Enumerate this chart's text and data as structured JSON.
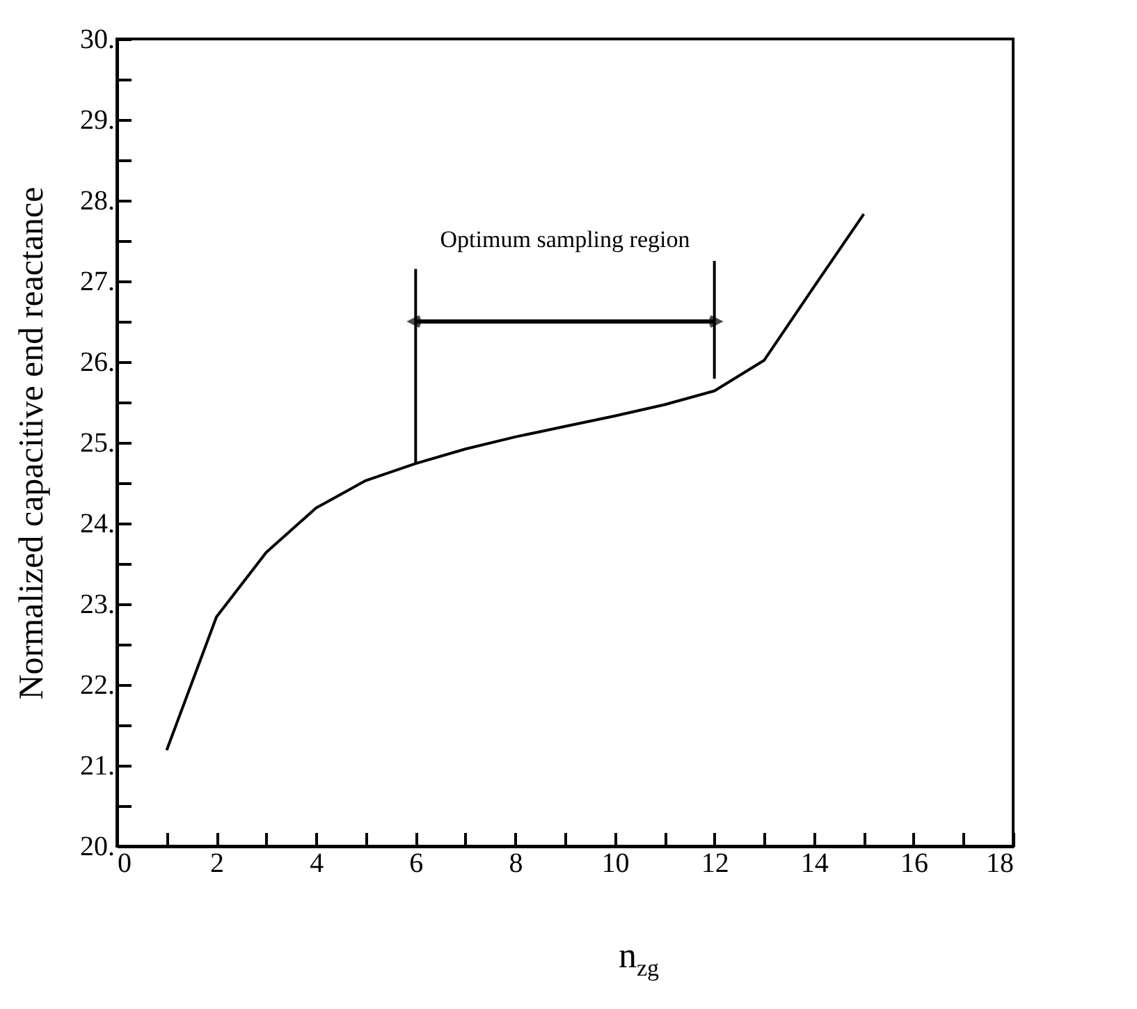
{
  "chart_data": {
    "type": "line",
    "xlabel": "n$_{zg}$",
    "ylabel": "Normalized capacitive end reactance",
    "x": [
      1,
      2,
      3,
      4,
      5,
      6,
      7,
      8,
      9,
      10,
      11,
      12,
      13,
      14,
      15
    ],
    "series": [
      {
        "color": "#000000",
        "values": [
          21.19,
          22.84,
          23.64,
          24.19,
          24.53,
          24.74,
          24.92,
          25.07,
          25.2,
          25.33,
          25.47,
          25.64,
          26.02,
          26.93,
          27.83
        ]
      }
    ],
    "xlim": [
      0,
      18
    ],
    "xticks": [
      0,
      {
        "value": 1,
        "label": null
      },
      2,
      {
        "value": 3,
        "label": null
      },
      4,
      {
        "value": 5,
        "label": null
      },
      6,
      {
        "value": 7,
        "label": null
      },
      8,
      {
        "value": 9,
        "label": null
      },
      10,
      {
        "value": 11,
        "label": null
      },
      12,
      {
        "value": 13,
        "label": null
      },
      14,
      {
        "value": 15,
        "label": null
      },
      16,
      {
        "value": 17,
        "label": null
      },
      18
    ],
    "ylim": [
      20,
      30
    ],
    "yticks": [
      {
        "value": 20,
        "label": "20."
      },
      {
        "value": 20.5,
        "label": null
      },
      {
        "value": 21,
        "label": "21."
      },
      {
        "value": 21.5,
        "label": null
      },
      {
        "value": 22,
        "label": "22."
      },
      {
        "value": 22.5,
        "label": null
      },
      {
        "value": 23,
        "label": "23."
      },
      {
        "value": 23.5,
        "label": null
      },
      {
        "value": 24,
        "label": "24."
      },
      {
        "value": 24.5,
        "label": null
      },
      {
        "value": 25,
        "label": "25."
      },
      {
        "value": 25.5,
        "label": null
      },
      {
        "value": 26,
        "label": "26."
      },
      {
        "value": 26.5,
        "label": null
      },
      {
        "value": 27,
        "label": "27."
      },
      {
        "value": 27.5,
        "label": null
      },
      {
        "value": 28,
        "label": "28."
      },
      {
        "value": 28.5,
        "label": null
      },
      {
        "value": 29,
        "label": "29."
      },
      {
        "value": 29.5,
        "label": null
      },
      {
        "value": 30,
        "label": "30."
      }
    ],
    "ref_lines": [
      {
        "axis": "x",
        "value": 6
      },
      {
        "axis": "x",
        "value": 12
      }
    ],
    "annotations": [
      "Optimum sampling region"
    ],
    "grid": false,
    "marker": "none",
    "line_style": "solid"
  }
}
